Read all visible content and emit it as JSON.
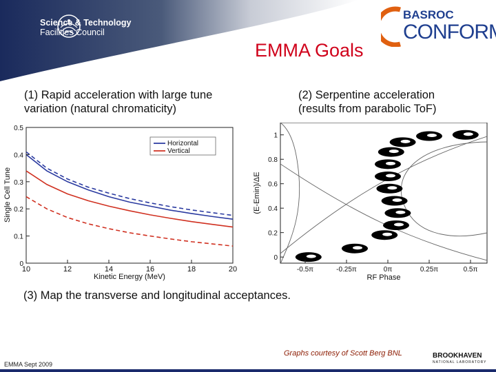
{
  "header": {
    "org_line1": "Science & Technology",
    "org_line2": "Facilities Council",
    "partner_top": "BASROC",
    "partner_main": "CONFORM",
    "title": "EMMA Goals"
  },
  "captions": {
    "c1_line1": "(1) Rapid acceleration with large tune",
    "c1_line2": "variation (natural chromaticity)",
    "c2_line1": "(2) Serpentine acceleration",
    "c2_line2": "(results from parabolic ToF)",
    "c3": "(3) Map the transverse and longitudinal acceptances."
  },
  "footer": {
    "credit": "Graphs courtesy of Scott Berg BNL",
    "left": "EMMA Sept 2009",
    "lab_name": "BROOKHAVEN",
    "lab_sub": "NATIONAL LABORATORY"
  },
  "colors": {
    "title": "#d0021b",
    "horizontal": "#2a3aa0",
    "vertical": "#d03020",
    "header": "#1a2a5c"
  },
  "chart_data": [
    {
      "type": "line",
      "xlabel": "Kinetic Energy (MeV)",
      "ylabel": "Single Cell Tune",
      "xlim": [
        10,
        20
      ],
      "ylim": [
        0,
        0.5
      ],
      "xticks": [
        "10",
        "12",
        "14",
        "16",
        "18",
        "20"
      ],
      "yticks": [
        "0",
        "0.1",
        "0.2",
        "0.3",
        "0.4",
        "0.5"
      ],
      "legend": [
        "Horizontal",
        "Vertical"
      ],
      "x": [
        10,
        11,
        12,
        13,
        14,
        15,
        16,
        17,
        18,
        19,
        20
      ],
      "series": [
        {
          "name": "Horizontal",
          "style": "solid",
          "color": "#2a3aa0",
          "values": [
            0.4,
            0.34,
            0.3,
            0.27,
            0.245,
            0.225,
            0.21,
            0.195,
            0.183,
            0.172,
            0.162
          ]
        },
        {
          "name": "Horizontal",
          "style": "dashed",
          "color": "#2a3aa0",
          "values": [
            0.41,
            0.35,
            0.31,
            0.28,
            0.258,
            0.238,
            0.222,
            0.208,
            0.196,
            0.186,
            0.176
          ]
        },
        {
          "name": "Vertical",
          "style": "solid",
          "color": "#d03020",
          "values": [
            0.34,
            0.29,
            0.255,
            0.23,
            0.21,
            0.193,
            0.178,
            0.165,
            0.153,
            0.143,
            0.133
          ]
        },
        {
          "name": "Vertical",
          "style": "dashed",
          "color": "#d03020",
          "values": [
            0.245,
            0.2,
            0.168,
            0.145,
            0.127,
            0.112,
            0.1,
            0.089,
            0.079,
            0.071,
            0.063
          ]
        }
      ]
    },
    {
      "type": "scatter",
      "xlabel": "RF Phase",
      "ylabel": "(E-Emin)/ΔE",
      "xticks": [
        "-0.5π",
        "-0.25π",
        "0π",
        "0.25π",
        "0.5π"
      ],
      "yticks": [
        "0",
        "0.2",
        "0.4",
        "0.6",
        "0.8",
        "1"
      ],
      "ylim": [
        -0.05,
        1.1
      ],
      "xlim": [
        -0.65,
        0.6
      ],
      "bunches": [
        {
          "x": -0.48,
          "y": 0.0
        },
        {
          "x": -0.2,
          "y": 0.07
        },
        {
          "x": -0.02,
          "y": 0.18
        },
        {
          "x": 0.05,
          "y": 0.26
        },
        {
          "x": 0.06,
          "y": 0.36
        },
        {
          "x": 0.04,
          "y": 0.46
        },
        {
          "x": 0.01,
          "y": 0.56
        },
        {
          "x": 0.0,
          "y": 0.66
        },
        {
          "x": 0.0,
          "y": 0.76
        },
        {
          "x": 0.02,
          "y": 0.86
        },
        {
          "x": 0.09,
          "y": 0.94
        },
        {
          "x": 0.25,
          "y": 0.99
        },
        {
          "x": 0.47,
          "y": 1.0
        }
      ]
    }
  ]
}
